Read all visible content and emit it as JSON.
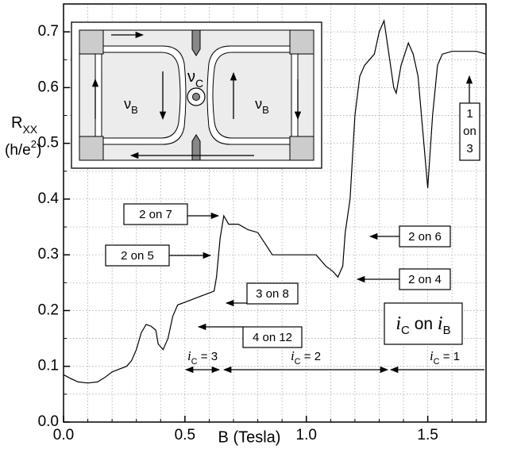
{
  "chart_data": {
    "type": "line",
    "xlabel": "B (Tesla)",
    "ylabel": {
      "text": "R",
      "sub": "XX"
    },
    "yunit": {
      "text": "(h/e",
      "sup": "2",
      "tail": ")"
    },
    "x": [
      0,
      0.03,
      0.06,
      0.1,
      0.14,
      0.17,
      0.2,
      0.23,
      0.26,
      0.28,
      0.3,
      0.32,
      0.34,
      0.36,
      0.38,
      0.39,
      0.41,
      0.43,
      0.45,
      0.47,
      0.5,
      0.53,
      0.56,
      0.59,
      0.62,
      0.63,
      0.645,
      0.66,
      0.68,
      0.72,
      0.76,
      0.8,
      0.83,
      0.86,
      0.9,
      0.95,
      1.0,
      1.04,
      1.08,
      1.11,
      1.13,
      1.15,
      1.16,
      1.18,
      1.2,
      1.22,
      1.24,
      1.26,
      1.28,
      1.3,
      1.32,
      1.34,
      1.36,
      1.37,
      1.39,
      1.42,
      1.44,
      1.46,
      1.48,
      1.5,
      1.52,
      1.54,
      1.56,
      1.6,
      1.65,
      1.7,
      1.74
    ],
    "values": [
      0.085,
      0.078,
      0.072,
      0.07,
      0.072,
      0.08,
      0.09,
      0.095,
      0.1,
      0.11,
      0.13,
      0.16,
      0.175,
      0.172,
      0.165,
      0.14,
      0.13,
      0.15,
      0.19,
      0.21,
      0.215,
      0.22,
      0.225,
      0.23,
      0.235,
      0.26,
      0.33,
      0.37,
      0.355,
      0.355,
      0.345,
      0.34,
      0.32,
      0.3,
      0.3,
      0.3,
      0.3,
      0.3,
      0.28,
      0.27,
      0.26,
      0.28,
      0.34,
      0.4,
      0.55,
      0.62,
      0.64,
      0.65,
      0.66,
      0.7,
      0.72,
      0.66,
      0.6,
      0.59,
      0.64,
      0.68,
      0.66,
      0.62,
      0.52,
      0.42,
      0.55,
      0.64,
      0.66,
      0.665,
      0.665,
      0.665,
      0.66
    ],
    "color": "#000000",
    "xlim": [
      0,
      1.74
    ],
    "ylim": [
      0,
      0.75
    ],
    "xticks": [
      {
        "value": 0,
        "label": "0.0"
      },
      0.5,
      {
        "value": 1,
        "label": "1.0"
      },
      1.5
    ],
    "yticks": [
      {
        "value": 0,
        "label": "0.0"
      },
      0.1,
      0.2,
      0.3,
      0.4,
      0.5,
      0.6,
      0.7
    ],
    "minor_xticks": [
      0.1,
      0.2,
      0.3,
      0.4,
      0.6,
      0.7,
      0.8,
      0.9,
      1.1,
      1.2,
      1.3,
      1.4,
      1.6,
      1.7
    ],
    "minor_yticks": [
      0.05,
      0.15,
      0.25,
      0.35,
      0.45,
      0.55,
      0.65
    ],
    "grid": true,
    "annotations": [
      "2 on 7",
      "2 on 5",
      "3 on 8",
      "4 on 12",
      "2 on 6",
      "2 on 4"
    ],
    "vertical_annotation": [
      "1",
      "on",
      "3"
    ],
    "regimes": [
      {
        "symbol": "i",
        "sub": "C",
        "text": " = 3"
      },
      {
        "symbol": "i",
        "sub": "C",
        "text": " = 2"
      },
      {
        "symbol": "i",
        "sub": "C",
        "text": " = 1"
      }
    ],
    "mode_label": {
      "symbol": "i",
      "sub": "C",
      "text": " on ",
      "symbol2": "i",
      "sub2": "B"
    },
    "inset": {
      "center": {
        "symbol": "ν",
        "sub": "C"
      },
      "left": {
        "symbol": "ν",
        "sub": "B"
      },
      "right": {
        "symbol": "ν",
        "sub": "B"
      }
    }
  }
}
